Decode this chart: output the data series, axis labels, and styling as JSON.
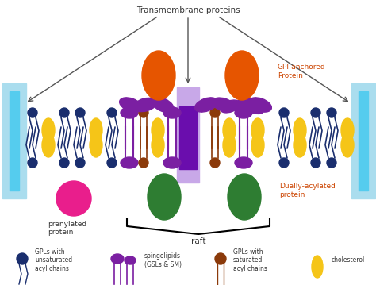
{
  "bg_color": "#ffffff",
  "navy": "#1a2e6e",
  "cyan_wall": "#55ccee",
  "cyan_wall_light": "#aaddee",
  "purple_head": "#7b1fa2",
  "yellow": "#f5c518",
  "orange": "#e65500",
  "green_protein": "#2e7d32",
  "magenta": "#e91e8c",
  "brown": "#8b3a0a",
  "teal": "#009688",
  "light_purple_tm": "#c8a8e8",
  "dark_purple_tm": "#6a0dad",
  "title": "Transmembrane proteins",
  "label_gpi": "GPI-anchored\nProtein",
  "label_dually": "Dually-acylated\nprotein",
  "label_prenyl": "prenylated\nprotein",
  "label_raft": "raft",
  "legend_gpl_unsat": "GPLs with\nunsaturated\nacyl chains",
  "legend_sphingo": "spingolipids\n(GSLs & SM)",
  "legend_gpl_sat": "GPLs with\nsaturated\nacyl chains",
  "legend_chol": "cholesterol"
}
